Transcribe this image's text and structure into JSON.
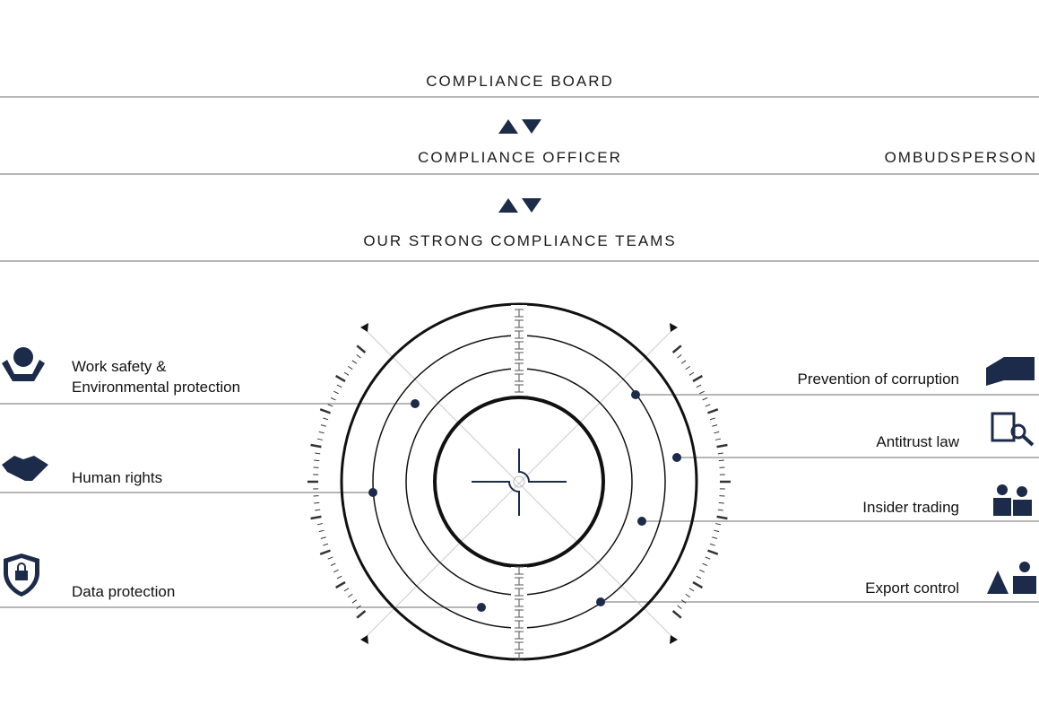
{
  "levels": [
    {
      "title": "COMPLIANCE BOARD"
    },
    {
      "title": "COMPLIANCE OFFICER",
      "side": "OMBUDSPERSON"
    },
    {
      "title": "OUR STRONG COMPLIANCE TEAMS"
    }
  ],
  "left_topics": [
    {
      "label_lines": [
        "Work safety &",
        "Environmental protection"
      ]
    },
    {
      "label_lines": [
        "Human rights"
      ]
    },
    {
      "label_lines": [
        "Data protection"
      ]
    }
  ],
  "right_topics": [
    {
      "label_lines": [
        "Prevention of corruption"
      ]
    },
    {
      "label_lines": [
        "Antitrust law"
      ]
    },
    {
      "label_lines": [
        "Insider trading"
      ]
    },
    {
      "label_lines": [
        "Export control"
      ]
    }
  ]
}
